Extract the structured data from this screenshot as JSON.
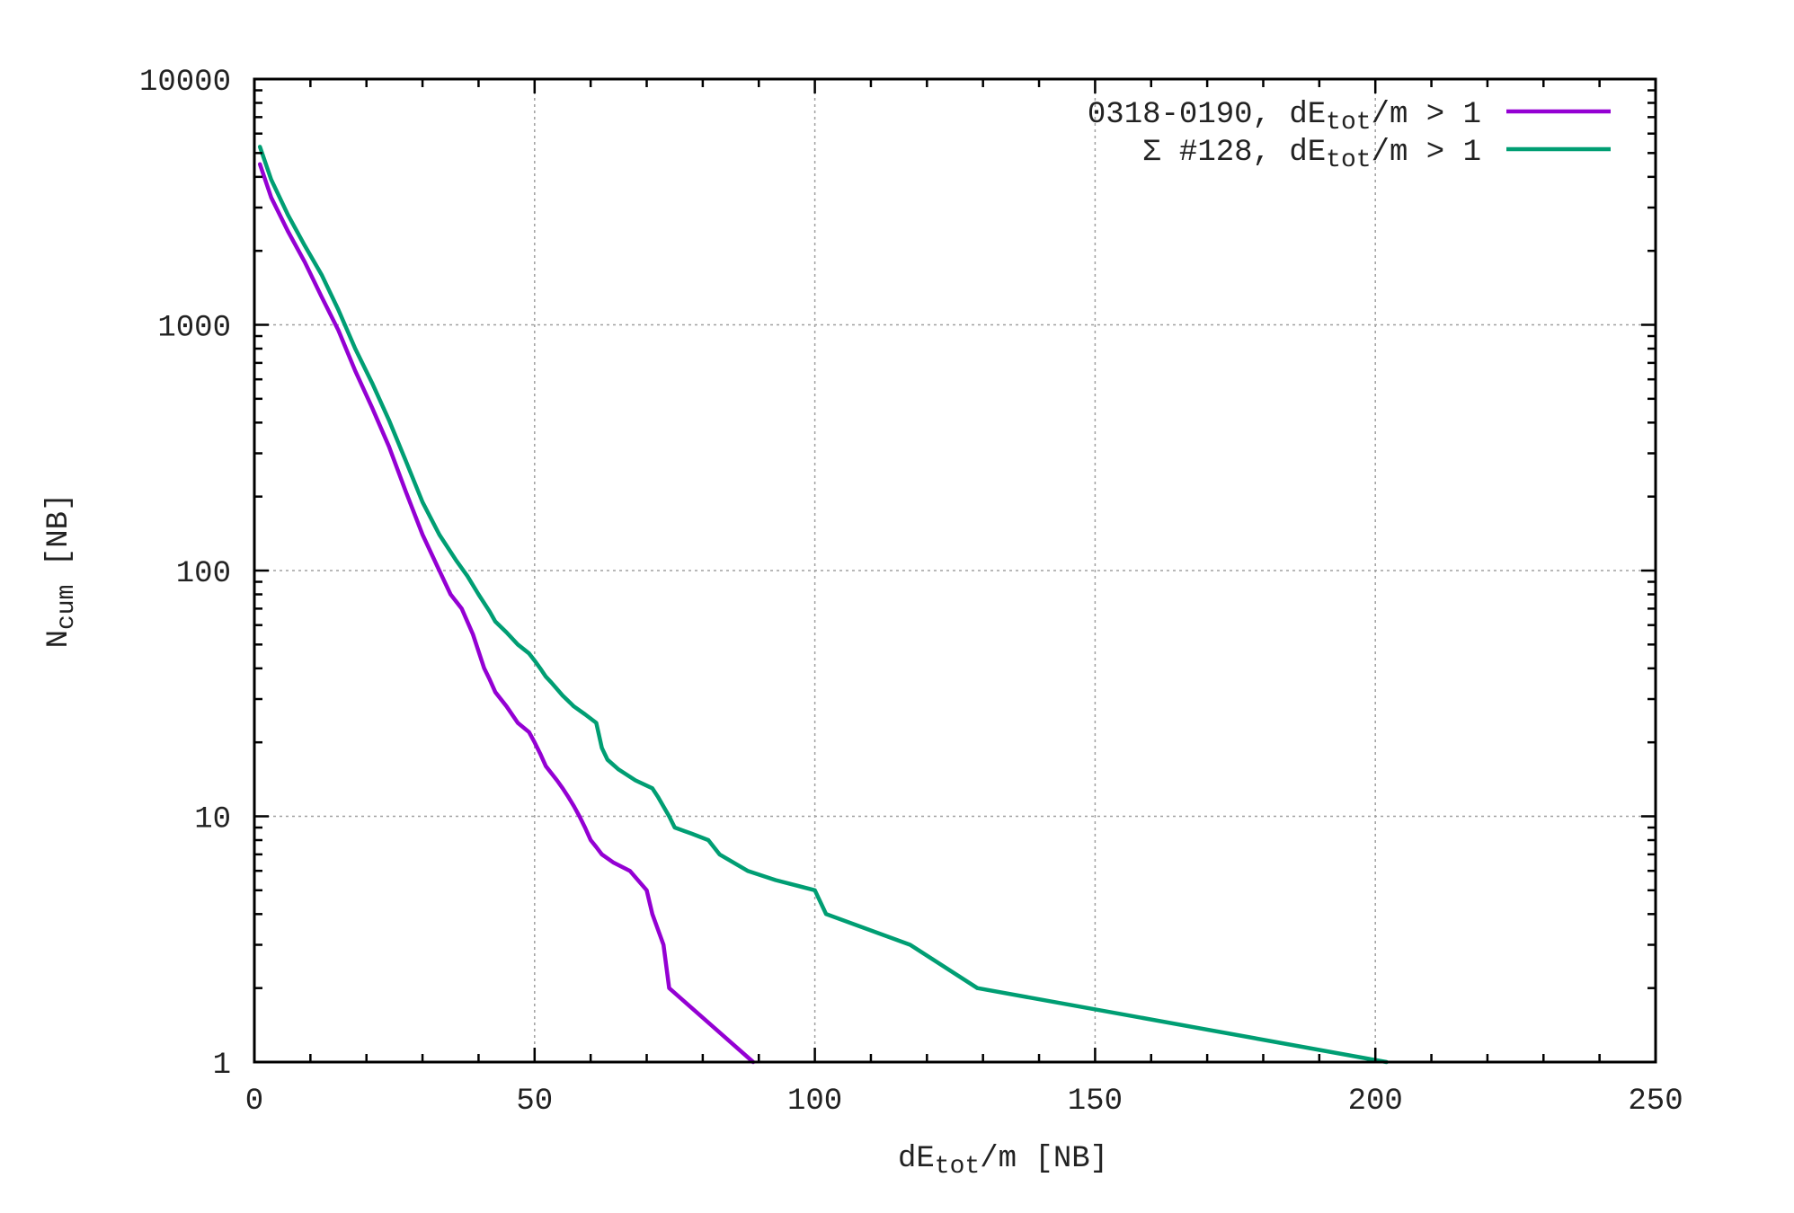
{
  "chart_data": {
    "type": "line",
    "title": "",
    "xlabel": {
      "base": "dE",
      "sub": "tot",
      "rest": "/m [NB]"
    },
    "ylabel": {
      "base": "N",
      "sub": "cum",
      "rest": "  [NB]"
    },
    "x_scale": "linear",
    "y_scale": "log",
    "xlim": [
      0,
      250
    ],
    "ylim": [
      1,
      10000
    ],
    "x_ticks": [
      0,
      50,
      100,
      150,
      200,
      250
    ],
    "x_tick_labels": [
      "0",
      "50",
      "100",
      "150",
      "200",
      "250"
    ],
    "y_ticks": [
      1,
      10,
      100,
      1000,
      10000
    ],
    "y_tick_labels": [
      "1",
      "10",
      "100",
      "1000",
      "10000"
    ],
    "grid": true,
    "legend_position": "top-right",
    "series": [
      {
        "name": {
          "pre": "0318-0190, dE",
          "sub": "tot",
          "post": "/m > 1"
        },
        "color": "#9400d3",
        "x": [
          1,
          3,
          6,
          9,
          12,
          15,
          18,
          21,
          24,
          27,
          30,
          33,
          35,
          37,
          39,
          41,
          42,
          43,
          45,
          47,
          49,
          50,
          51,
          52,
          54,
          55,
          56,
          57,
          58,
          59,
          60,
          61,
          62,
          64,
          67,
          70,
          71,
          73,
          74,
          89
        ],
        "y": [
          4500,
          3300,
          2400,
          1800,
          1300,
          950,
          650,
          460,
          320,
          210,
          140,
          100,
          80,
          70,
          55,
          40,
          36,
          32,
          28,
          24,
          22,
          20,
          18,
          16,
          14,
          13,
          12,
          11,
          10,
          9,
          8,
          7.5,
          7,
          6.5,
          6,
          5,
          4,
          3,
          2,
          1
        ]
      },
      {
        "name": {
          "pre": "Σ #128, dE",
          "sub": "tot",
          "post": "/m > 1"
        },
        "color": "#009e73",
        "x": [
          1,
          3,
          6,
          9,
          12,
          15,
          18,
          21,
          24,
          27,
          30,
          33,
          36,
          38,
          40,
          42,
          43,
          45,
          47,
          49,
          50,
          51,
          52,
          53,
          55,
          57,
          59,
          61,
          62,
          63,
          65,
          68,
          71,
          72,
          74,
          75,
          78,
          81,
          83,
          88,
          93,
          100,
          102,
          117,
          129,
          202
        ],
        "y": [
          5300,
          3900,
          2800,
          2100,
          1600,
          1150,
          800,
          580,
          410,
          280,
          190,
          140,
          110,
          95,
          80,
          68,
          62,
          56,
          50,
          46,
          43,
          40,
          37,
          35,
          31,
          28,
          26,
          24,
          19,
          17,
          15.5,
          14,
          13,
          12,
          10,
          9,
          8.5,
          8,
          7,
          6,
          5.5,
          5,
          4,
          3,
          2,
          1
        ]
      }
    ]
  }
}
